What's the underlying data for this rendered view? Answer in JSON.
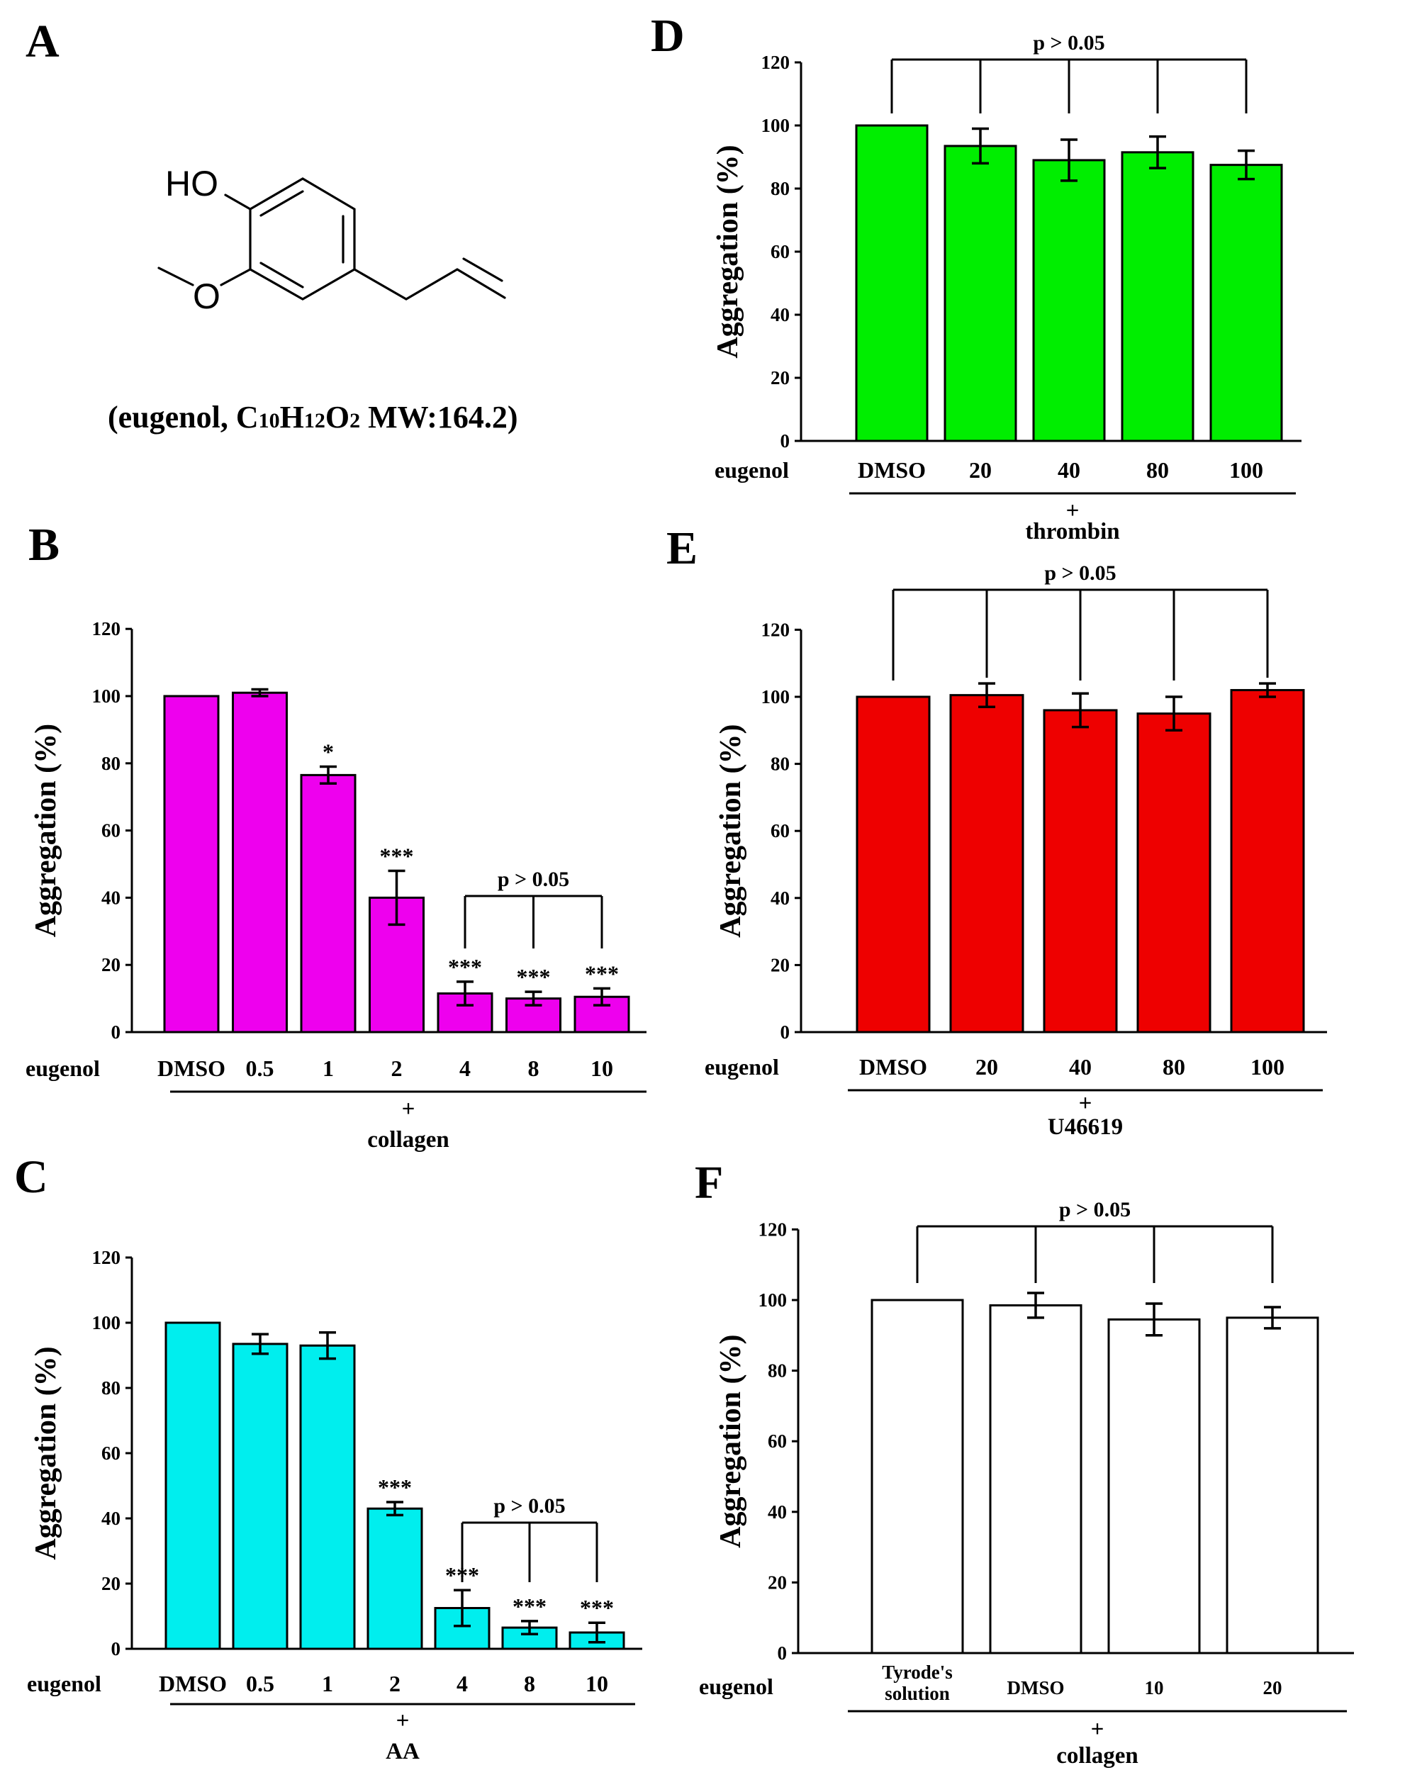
{
  "figure": {
    "molecule": {
      "atom_ho": "HO",
      "atom_o": "O",
      "caption_pre": "(eugenol, C",
      "caption_c": "10",
      "caption_h_label": "H",
      "caption_h": "12",
      "caption_o_label": "O",
      "caption_o": "2",
      "caption_post": " MW:164.2)"
    }
  },
  "chart_data": [
    {
      "panel": "A",
      "type": "structure",
      "compound": "eugenol"
    },
    {
      "panel": "B",
      "type": "bar",
      "ylabel": "Aggregation (%)",
      "ylim": [
        0,
        120
      ],
      "yticks": [
        0,
        20,
        40,
        60,
        80,
        100,
        120
      ],
      "categories": [
        "DMSO",
        "0.5",
        "1",
        "2",
        "4",
        "8",
        "10"
      ],
      "values": [
        100,
        101,
        76.5,
        40,
        11.5,
        10,
        10.5
      ],
      "errors": [
        0,
        1,
        2.5,
        8,
        3.5,
        2,
        2.5
      ],
      "significance": [
        "",
        "",
        "*",
        "***",
        "***",
        "***",
        "***"
      ],
      "bar_color": "#ee00ee",
      "row_label": "eugenol",
      "plus": "+",
      "agonist": "collagen",
      "bracket": {
        "label": "p > 0.05",
        "from": 4,
        "to": 6
      }
    },
    {
      "panel": "C",
      "type": "bar",
      "ylabel": "Aggregation (%)",
      "ylim": [
        0,
        120
      ],
      "yticks": [
        0,
        20,
        40,
        60,
        80,
        100,
        120
      ],
      "categories": [
        "DMSO",
        "0.5",
        "1",
        "2",
        "4",
        "8",
        "10"
      ],
      "values": [
        100,
        93.5,
        93,
        43,
        12.5,
        6.5,
        5
      ],
      "errors": [
        0,
        3,
        4,
        2,
        5.5,
        2,
        3
      ],
      "significance": [
        "",
        "",
        "",
        "***",
        "***",
        "***",
        "***"
      ],
      "bar_color": "#00eeee",
      "row_label": "eugenol",
      "plus": "+",
      "agonist": "AA",
      "bracket": {
        "label": "p > 0.05",
        "from": 4,
        "to": 6
      }
    },
    {
      "panel": "D",
      "type": "bar",
      "ylabel": "Aggregation (%)",
      "ylim": [
        0,
        120
      ],
      "yticks": [
        0,
        20,
        40,
        60,
        80,
        100,
        120
      ],
      "categories": [
        "DMSO",
        "20",
        "40",
        "80",
        "100"
      ],
      "values": [
        100,
        93.5,
        89,
        91.5,
        87.5
      ],
      "errors": [
        0,
        5.5,
        6.5,
        5,
        4.5
      ],
      "significance": [
        "",
        "",
        "",
        "",
        ""
      ],
      "bar_color": "#00ee00",
      "row_label": "eugenol",
      "plus": "+",
      "agonist": "thrombin",
      "bracket": {
        "label": "p > 0.05",
        "from": 0,
        "to": 4
      }
    },
    {
      "panel": "E",
      "type": "bar",
      "ylabel": "Aggregation (%)",
      "ylim": [
        0,
        120
      ],
      "yticks": [
        0,
        20,
        40,
        60,
        80,
        100,
        120
      ],
      "categories": [
        "DMSO",
        "20",
        "40",
        "80",
        "100"
      ],
      "values": [
        100,
        100.5,
        96,
        95,
        102
      ],
      "errors": [
        0,
        3.5,
        5,
        5,
        2
      ],
      "significance": [
        "",
        "",
        "",
        "",
        ""
      ],
      "bar_color": "#ee0000",
      "row_label": "eugenol",
      "plus": "+",
      "agonist": "U46619",
      "bracket": {
        "label": "p > 0.05",
        "from": 0,
        "to": 4
      }
    },
    {
      "panel": "F",
      "type": "bar",
      "ylabel": "Aggregation (%)",
      "ylim": [
        0,
        120
      ],
      "yticks": [
        0,
        20,
        40,
        60,
        80,
        100,
        120
      ],
      "categories": [
        "Tyrode's solution",
        "DMSO",
        "10",
        "20"
      ],
      "values": [
        100,
        98.5,
        94.5,
        95
      ],
      "errors": [
        0,
        3.5,
        4.5,
        3
      ],
      "significance": [
        "",
        "",
        "",
        ""
      ],
      "bar_color": "#ffffff",
      "row_label": "eugenol",
      "plus": "+",
      "agonist": "collagen",
      "bracket": {
        "label": "p > 0.05",
        "from": 0,
        "to": 3
      }
    }
  ]
}
